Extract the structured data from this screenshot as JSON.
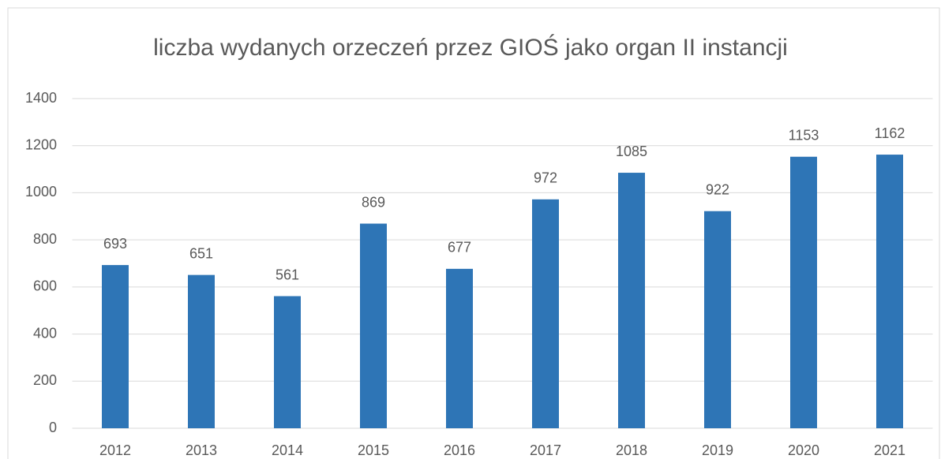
{
  "chart_data": {
    "type": "bar",
    "title": "liczba wydanych orzeczeń przez GIOŚ jako organ II instancji",
    "categories": [
      "2012",
      "2013",
      "2014",
      "2015",
      "2016",
      "2017",
      "2018",
      "2019",
      "2020",
      "2021"
    ],
    "values": [
      693,
      651,
      561,
      869,
      677,
      972,
      1085,
      922,
      1153,
      1162
    ],
    "color": "#2e75b6",
    "ylim": [
      0,
      1400
    ],
    "yticks": [
      0,
      200,
      400,
      600,
      800,
      1000,
      1200,
      1400
    ],
    "grid": true
  }
}
